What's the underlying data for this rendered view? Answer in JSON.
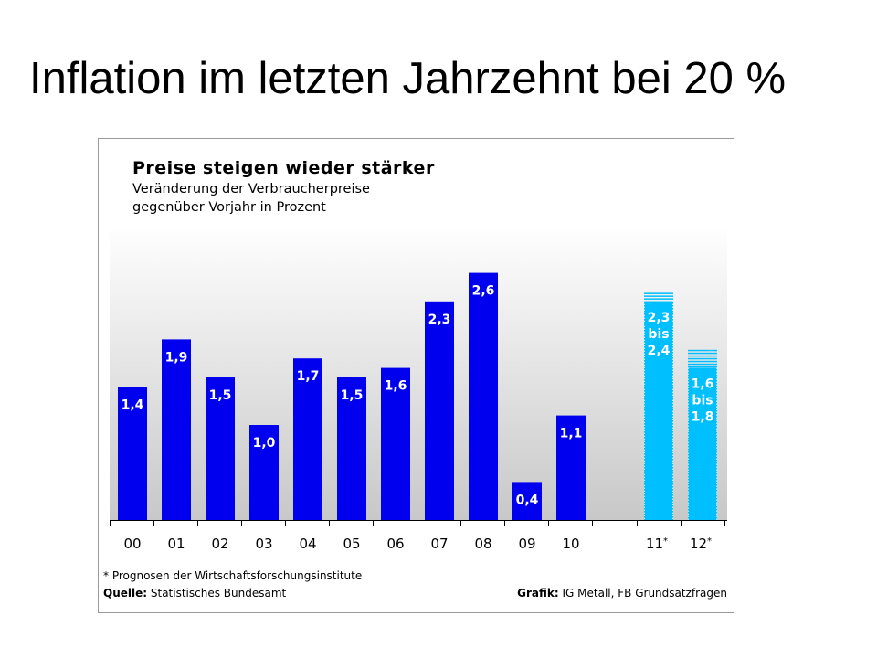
{
  "slide": {
    "title": "Inflation im letzten Jahrzehnt bei 20 %"
  },
  "chart_data": {
    "type": "bar",
    "title": "Preise steigen wieder stärker",
    "subtitle": [
      "Veränderung der Verbraucherpreise",
      "gegenüber Vorjahr in Prozent"
    ],
    "categories": [
      "00",
      "01",
      "02",
      "03",
      "04",
      "05",
      "06",
      "07",
      "08",
      "09",
      "10",
      "11*",
      "12*"
    ],
    "values": [
      1.4,
      1.9,
      1.5,
      1.0,
      1.7,
      1.5,
      1.6,
      2.3,
      2.6,
      0.4,
      1.1,
      null,
      null
    ],
    "value_labels": [
      "1,4",
      "1,9",
      "1,5",
      "1,0",
      "1,7",
      "1,5",
      "1,6",
      "2,3",
      "2,6",
      "0,4",
      "1,1",
      "",
      ""
    ],
    "forecast": [
      {
        "category": "11*",
        "low": 2.3,
        "high": 2.4,
        "label": [
          "2,3",
          "bis",
          "2,4"
        ]
      },
      {
        "category": "12*",
        "low": 1.6,
        "high": 1.8,
        "label": [
          "1,6",
          "bis",
          "1,8"
        ]
      }
    ],
    "colors": {
      "actual": "#0000ee",
      "forecast": "#00bfff",
      "plot_top": "#ffffff",
      "plot_bottom": "#c8c8c8"
    },
    "ylim": [
      0,
      2.8
    ],
    "grid": false,
    "footnote": "* Prognosen der Wirtschaftsforschungsinstitute",
    "source_label": "Quelle:",
    "source": "Statistisches Bundesamt",
    "credit_label": "Grafik:",
    "credit": "IG Metall, FB Grundsatzfragen"
  }
}
